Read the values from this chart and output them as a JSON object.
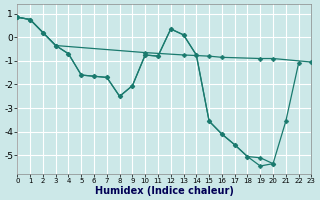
{
  "xlabel": "Humidex (Indice chaleur)",
  "xlim": [
    0,
    23
  ],
  "ylim": [
    -5.8,
    1.4
  ],
  "yticks": [
    1,
    0,
    -1,
    -2,
    -3,
    -4,
    -5
  ],
  "xticks": [
    0,
    1,
    2,
    3,
    4,
    5,
    6,
    7,
    8,
    9,
    10,
    11,
    12,
    13,
    14,
    15,
    16,
    17,
    18,
    19,
    20,
    21,
    22,
    23
  ],
  "bg_color": "#cce8e8",
  "grid_color": "#b8d8d8",
  "line_color": "#1a7a6e",
  "series": [
    {
      "x": [
        0,
        1,
        2,
        3,
        10,
        13,
        15,
        16,
        19,
        20,
        23
      ],
      "y": [
        0.85,
        0.75,
        0.2,
        -0.35,
        -0.65,
        -0.75,
        -0.8,
        -0.85,
        -0.9,
        -0.9,
        -1.05
      ]
    },
    {
      "x": [
        0,
        1,
        2,
        3,
        4,
        5,
        6,
        7,
        8,
        9,
        10,
        11,
        12,
        13,
        14,
        15,
        16,
        17,
        18,
        19,
        20
      ],
      "y": [
        0.85,
        0.75,
        0.2,
        -0.35,
        -0.7,
        -1.6,
        -1.65,
        -1.7,
        -2.5,
        -2.05,
        -0.75,
        -0.8,
        0.35,
        0.1,
        -0.75,
        -3.55,
        -4.1,
        -4.55,
        -5.05,
        -5.1,
        -5.35
      ]
    },
    {
      "x": [
        0,
        1,
        2,
        3,
        4,
        5,
        6,
        7,
        8,
        9,
        10,
        11,
        12,
        13,
        14,
        15,
        16,
        17,
        18,
        19,
        20,
        21,
        22,
        23
      ],
      "y": [
        0.85,
        0.75,
        0.2,
        -0.35,
        -0.7,
        -1.6,
        -1.65,
        -1.7,
        -2.5,
        -2.05,
        -0.75,
        -0.8,
        0.35,
        0.1,
        -0.75,
        -3.55,
        -4.1,
        -4.55,
        -5.05,
        -5.45,
        -5.35,
        -3.55,
        -1.1,
        null
      ]
    }
  ]
}
